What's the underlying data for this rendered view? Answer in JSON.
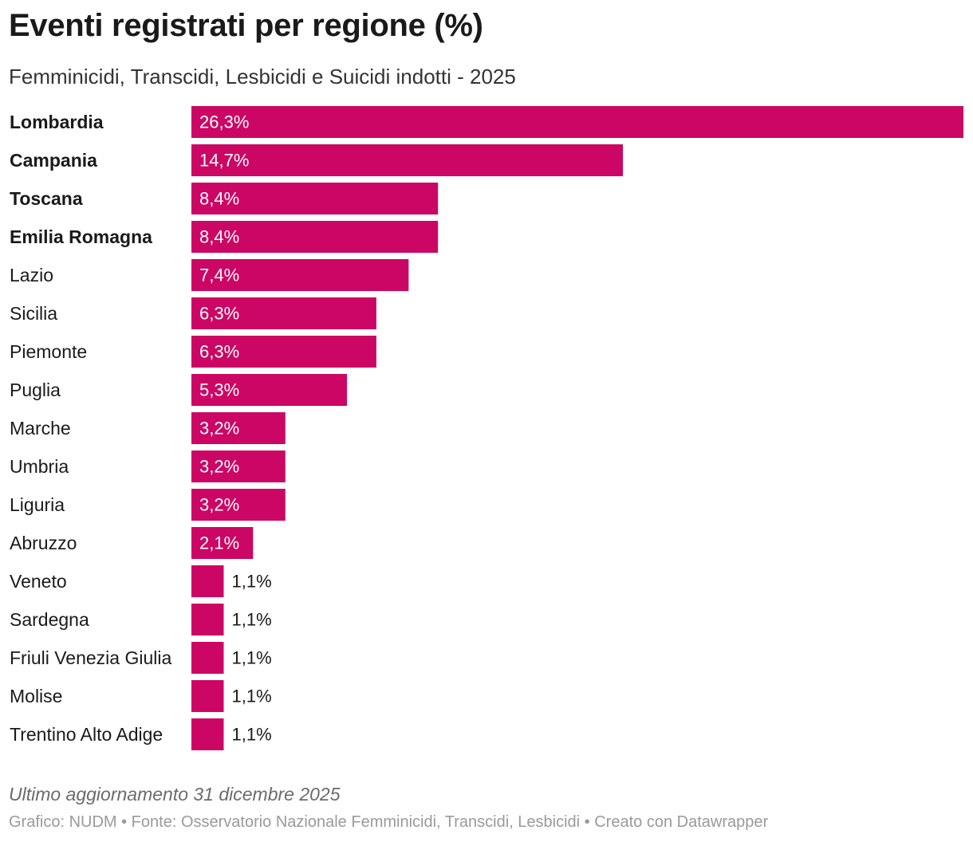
{
  "header": {
    "title": "Eventi registrati per regione (%)",
    "subtitle": "Femminicidi, Transcidi, Lesbicidi e Suicidi indotti - 2025"
  },
  "chart_data": {
    "type": "bar",
    "orientation": "horizontal",
    "bar_color": "#cc0664",
    "categories": [
      "Lombardia",
      "Campania",
      "Toscana",
      "Emilia Romagna",
      "Lazio",
      "Sicilia",
      "Piemonte",
      "Puglia",
      "Marche",
      "Umbria",
      "Liguria",
      "Abruzzo",
      "Veneto",
      "Sardegna",
      "Friuli Venezia Giulia",
      "Molise",
      "Trentino Alto Adige"
    ],
    "values": [
      26.3,
      14.7,
      8.4,
      8.4,
      7.4,
      6.3,
      6.3,
      5.3,
      3.2,
      3.2,
      3.2,
      2.1,
      1.1,
      1.1,
      1.1,
      1.1,
      1.1
    ],
    "value_labels": [
      "26,3%",
      "14,7%",
      "8,4%",
      "8,4%",
      "7,4%",
      "6,3%",
      "6,3%",
      "5,3%",
      "3,2%",
      "3,2%",
      "3,2%",
      "2,1%",
      "1,1%",
      "1,1%",
      "1,1%",
      "1,1%",
      "1,1%"
    ],
    "bold_categories": [
      "Lombardia",
      "Campania",
      "Toscana",
      "Emilia Romagna"
    ],
    "xlim": [
      0,
      26.3
    ]
  },
  "footer": {
    "note": "Ultimo aggiornamento 31 dicembre 2025",
    "credits": "Grafico: NUDM • Fonte: Osservatorio Nazionale Femminicidi, Transcidi, Lesbicidi • Creato con Datawrapper"
  }
}
